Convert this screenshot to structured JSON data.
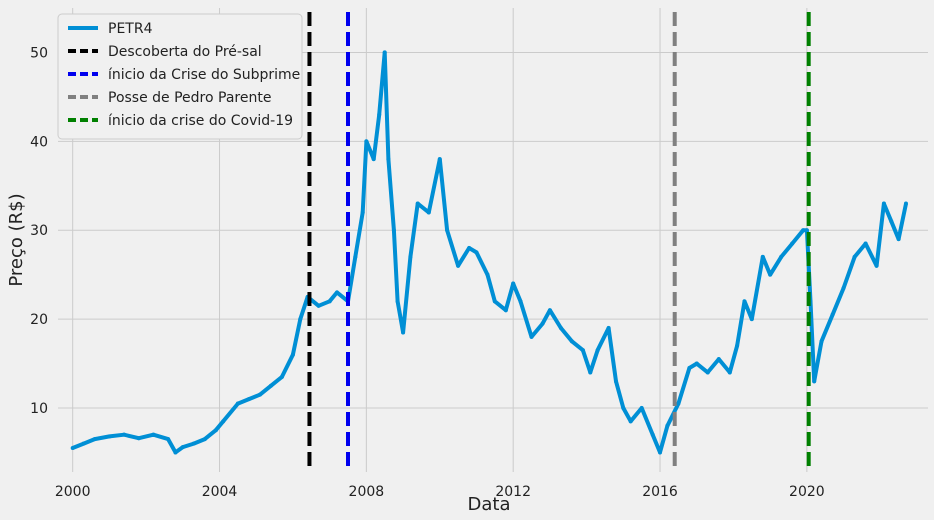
{
  "chart_data": {
    "type": "line",
    "xlabel": "Data",
    "ylabel": "Preço (R$)",
    "xlim": [
      1999.6,
      2023.3
    ],
    "ylim": [
      2.8,
      55
    ],
    "grid": true,
    "legend_position": "top-left",
    "x_ticks": [
      {
        "value": 2000,
        "label": "2000"
      },
      {
        "value": 2004,
        "label": "2004"
      },
      {
        "value": 2008,
        "label": "2008"
      },
      {
        "value": 2012,
        "label": "2012"
      },
      {
        "value": 2016,
        "label": "2016"
      },
      {
        "value": 2020,
        "label": "2020"
      }
    ],
    "y_ticks": [
      {
        "value": 10,
        "label": "10"
      },
      {
        "value": 20,
        "label": "20"
      },
      {
        "value": 30,
        "label": "30"
      },
      {
        "value": 40,
        "label": "40"
      },
      {
        "value": 50,
        "label": "50"
      }
    ],
    "series": [
      {
        "name": "PETR4",
        "color": "#008fd5",
        "x": [
          2000.0,
          2000.3,
          2000.6,
          2001.0,
          2001.4,
          2001.8,
          2002.2,
          2002.6,
          2002.8,
          2003.0,
          2003.3,
          2003.6,
          2003.9,
          2004.1,
          2004.5,
          2004.8,
          2005.1,
          2005.4,
          2005.7,
          2006.0,
          2006.2,
          2006.4,
          2006.7,
          2007.0,
          2007.2,
          2007.5,
          2007.7,
          2007.9,
          2008.0,
          2008.2,
          2008.35,
          2008.5,
          2008.6,
          2008.75,
          2008.85,
          2009.0,
          2009.2,
          2009.4,
          2009.7,
          2010.0,
          2010.2,
          2010.5,
          2010.8,
          2011.0,
          2011.3,
          2011.5,
          2011.8,
          2012.0,
          2012.2,
          2012.5,
          2012.8,
          2013.0,
          2013.3,
          2013.6,
          2013.9,
          2014.1,
          2014.3,
          2014.6,
          2014.8,
          2015.0,
          2015.2,
          2015.5,
          2015.8,
          2016.0,
          2016.2,
          2016.5,
          2016.8,
          2017.0,
          2017.3,
          2017.6,
          2017.9,
          2018.1,
          2018.3,
          2018.5,
          2018.8,
          2019.0,
          2019.3,
          2019.6,
          2019.9,
          2020.0,
          2020.1,
          2020.2,
          2020.4,
          2020.7,
          2021.0,
          2021.3,
          2021.6,
          2021.9,
          2022.1,
          2022.3,
          2022.5,
          2022.7
        ],
        "y": [
          5.5,
          6.0,
          6.5,
          6.8,
          7.0,
          6.6,
          7.0,
          6.5,
          5.0,
          5.6,
          6.0,
          6.5,
          7.5,
          8.5,
          10.5,
          11.0,
          11.5,
          12.5,
          13.5,
          16.0,
          20.0,
          22.5,
          21.5,
          22.0,
          23.0,
          22.0,
          27.0,
          32.0,
          40.0,
          38.0,
          43.0,
          50.0,
          38.0,
          30.0,
          22.0,
          18.5,
          27.0,
          33.0,
          32.0,
          38.0,
          30.0,
          26.0,
          28.0,
          27.5,
          25.0,
          22.0,
          21.0,
          24.0,
          22.0,
          18.0,
          19.5,
          21.0,
          19.0,
          17.5,
          16.5,
          14.0,
          16.5,
          19.0,
          13.0,
          10.0,
          8.5,
          10.0,
          7.0,
          5.0,
          8.0,
          10.5,
          14.5,
          15.0,
          14.0,
          15.5,
          14.0,
          17.0,
          22.0,
          20.0,
          27.0,
          25.0,
          27.0,
          28.5,
          30.0,
          30.0,
          22.0,
          13.0,
          17.5,
          20.5,
          23.5,
          27.0,
          28.5,
          26.0,
          33.0,
          31.0,
          29.0,
          33.0
        ]
      }
    ],
    "events": [
      {
        "name": "Descoberta do Pré-sal",
        "x": 2006.45,
        "color": "#000000"
      },
      {
        "name": "ínicio da Crise do Subprime",
        "x": 2007.5,
        "color": "#0000ee"
      },
      {
        "name": "Posse de Pedro Parente",
        "x": 2016.4,
        "color": "#808080"
      },
      {
        "name": "ínicio da crise do Covid-19",
        "x": 2020.05,
        "color": "#008000"
      }
    ]
  }
}
